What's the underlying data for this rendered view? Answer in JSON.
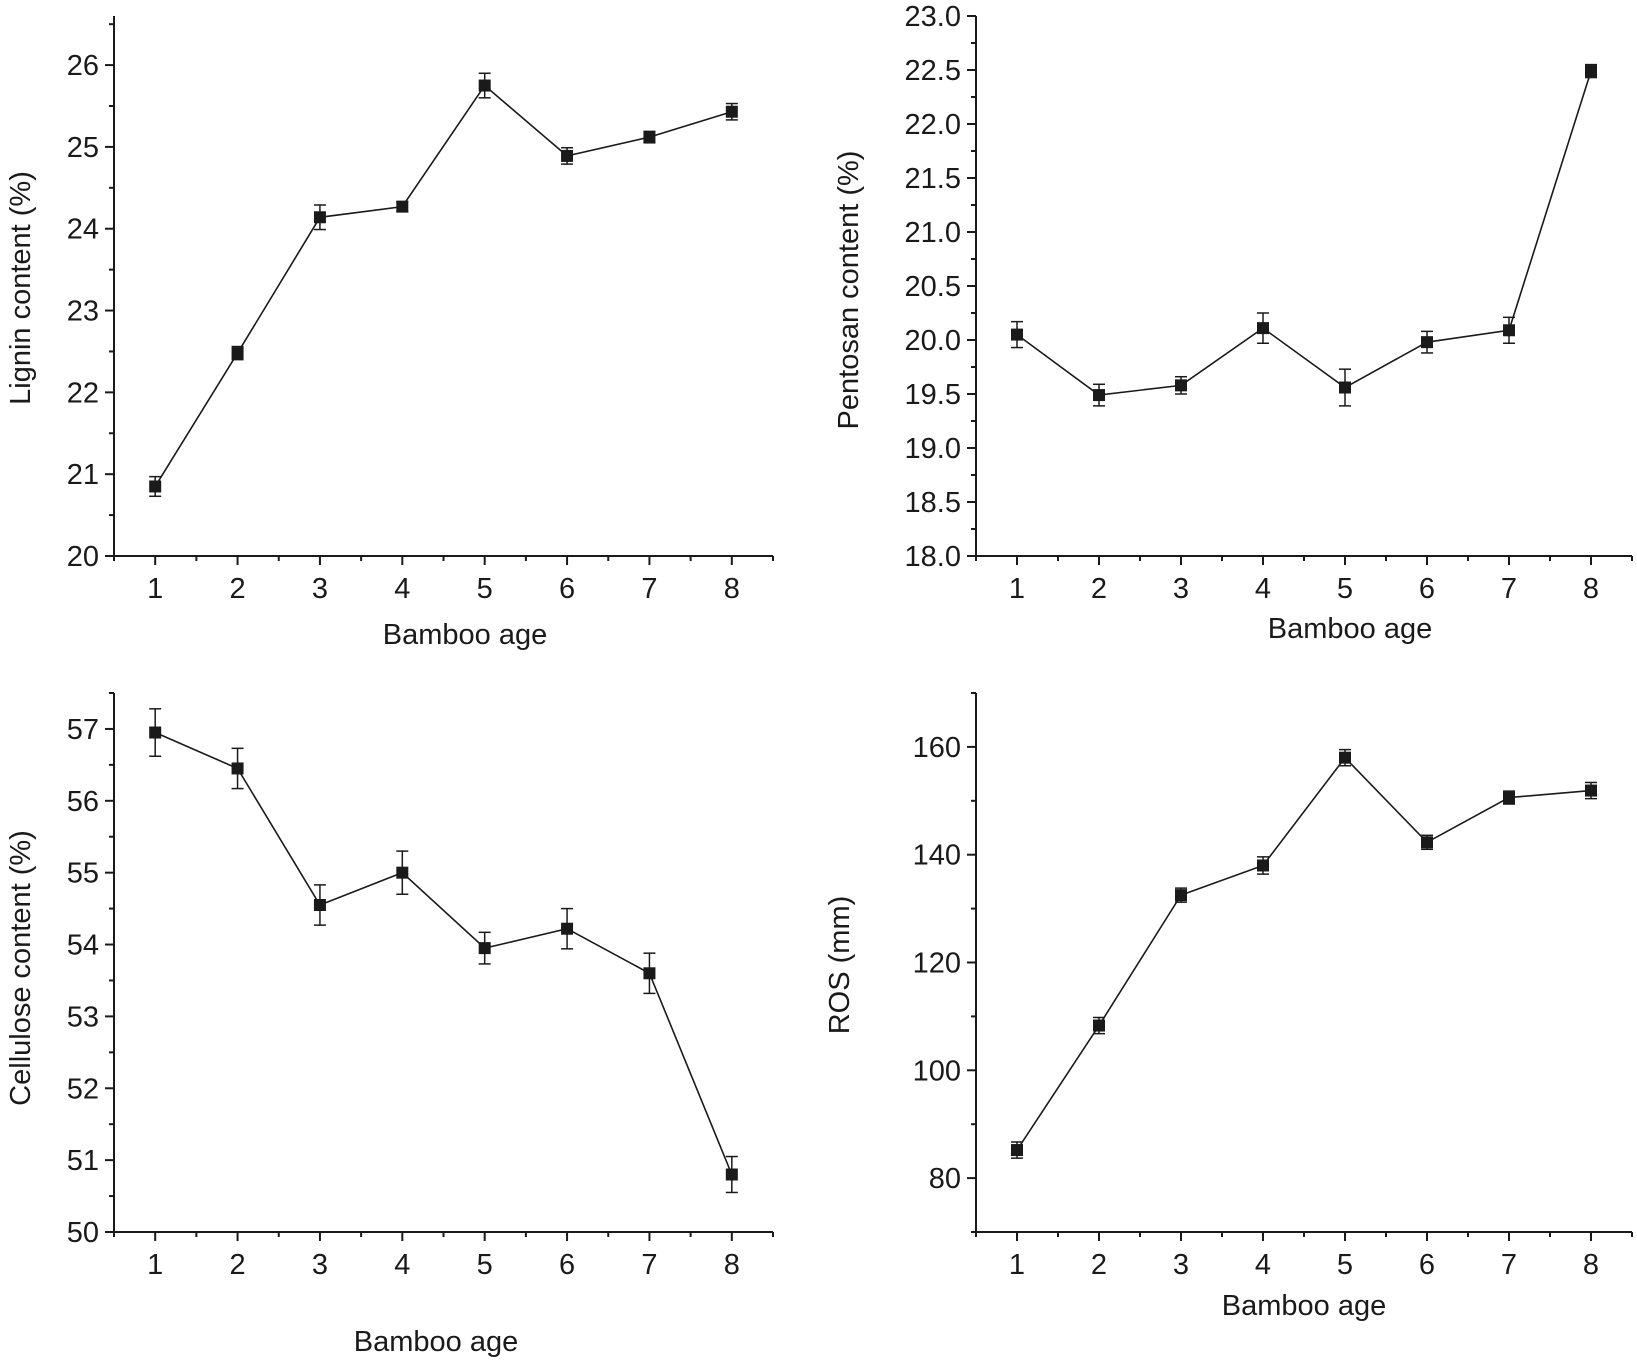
{
  "chart_data": [
    {
      "type": "line",
      "title": "",
      "xlabel": "Bamboo age",
      "ylabel": "Lignin content (%)",
      "x": [
        1,
        2,
        3,
        4,
        5,
        6,
        7,
        8
      ],
      "xticks": [
        "1",
        "2",
        "3",
        "4",
        "5",
        "6",
        "7",
        "8"
      ],
      "xlim": [
        0.5,
        8.5
      ],
      "ylim": [
        20,
        26.6
      ],
      "yticks": [
        "20",
        "21",
        "22",
        "23",
        "24",
        "25",
        "26"
      ],
      "yminor_step": 0.5,
      "series": [
        {
          "name": "Lignin content",
          "values": [
            20.85,
            22.48,
            24.14,
            24.27,
            25.75,
            24.89,
            25.12,
            25.43
          ],
          "errors": [
            0.12,
            0.08,
            0.15,
            0.06,
            0.15,
            0.1,
            0.07,
            0.1
          ]
        }
      ],
      "grid": false,
      "marker": "square"
    },
    {
      "type": "line",
      "title": "",
      "xlabel": "Bamboo age",
      "ylabel": "Pentosan content (%)",
      "x": [
        1,
        2,
        3,
        4,
        5,
        6,
        7,
        8
      ],
      "xticks": [
        "1",
        "2",
        "3",
        "4",
        "5",
        "6",
        "7",
        "8"
      ],
      "xlim": [
        0.5,
        8.5
      ],
      "ylim": [
        18.0,
        23.0
      ],
      "yticks": [
        "18.0",
        "18.5",
        "19.0",
        "19.5",
        "20.0",
        "20.5",
        "21.0",
        "21.5",
        "22.0",
        "22.5",
        "23.0"
      ],
      "yminor_step": 0.25,
      "series": [
        {
          "name": "Pentosan content",
          "values": [
            20.05,
            19.49,
            19.58,
            20.11,
            19.56,
            19.98,
            20.09,
            22.49
          ],
          "errors": [
            0.12,
            0.1,
            0.08,
            0.14,
            0.17,
            0.1,
            0.12,
            0.06
          ]
        }
      ],
      "grid": false,
      "marker": "square"
    },
    {
      "type": "line",
      "title": "",
      "xlabel": "Bamboo age",
      "ylabel": "Cellulose content (%)",
      "x": [
        1,
        2,
        3,
        4,
        5,
        6,
        7,
        8
      ],
      "xticks": [
        "1",
        "2",
        "3",
        "4",
        "5",
        "6",
        "7",
        "8"
      ],
      "xlim": [
        0.5,
        8.5
      ],
      "ylim": [
        50,
        57.5
      ],
      "yticks": [
        "50",
        "51",
        "52",
        "53",
        "54",
        "55",
        "56",
        "57"
      ],
      "yminor_step": 0.5,
      "series": [
        {
          "name": "Cellulose content",
          "values": [
            56.95,
            56.45,
            54.55,
            55.0,
            53.95,
            54.22,
            53.6,
            50.8
          ],
          "errors": [
            0.33,
            0.28,
            0.28,
            0.3,
            0.22,
            0.28,
            0.28,
            0.25
          ]
        }
      ],
      "grid": false,
      "marker": "square"
    },
    {
      "type": "line",
      "title": "",
      "xlabel": "Bamboo age",
      "ylabel": "ROS (mm)",
      "x": [
        1,
        2,
        3,
        4,
        5,
        6,
        7,
        8
      ],
      "xticks": [
        "1",
        "2",
        "3",
        "4",
        "5",
        "6",
        "7",
        "8"
      ],
      "xlim": [
        0.5,
        8.5
      ],
      "ylim": [
        70,
        170
      ],
      "yticks": [
        "80",
        "100",
        "120",
        "140",
        "160"
      ],
      "yticks_values": [
        80,
        100,
        120,
        140,
        160
      ],
      "yminor_step": 10,
      "series": [
        {
          "name": "ROS",
          "values": [
            85.2,
            108.3,
            132.5,
            138.0,
            158.0,
            142.3,
            150.6,
            151.9
          ],
          "errors": [
            1.5,
            1.5,
            1.3,
            1.6,
            1.5,
            1.3,
            1.2,
            1.5
          ]
        }
      ],
      "grid": false,
      "marker": "square"
    }
  ]
}
